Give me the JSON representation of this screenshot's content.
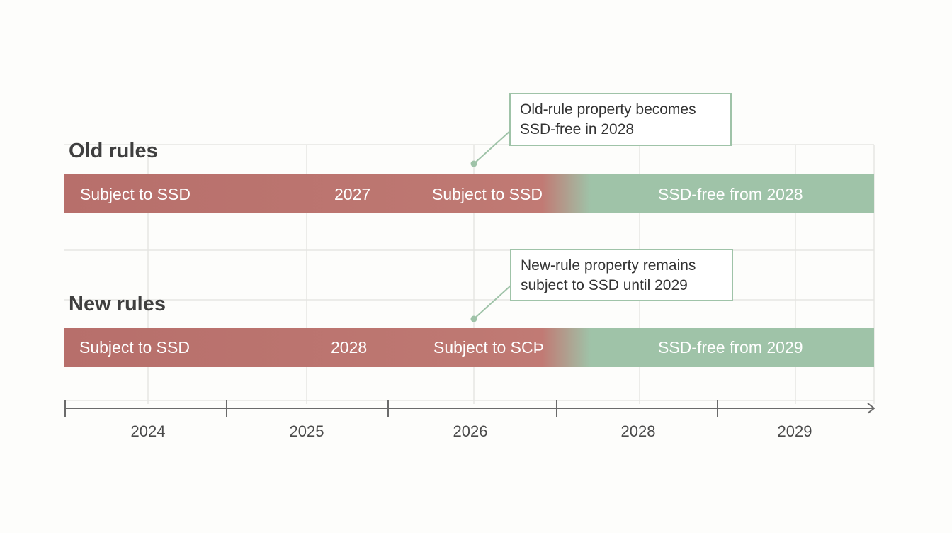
{
  "colors": {
    "background": "#fdfdfb",
    "grid": "#e6e6e3",
    "subject_red": "#b76f6b",
    "free_green": "#9fc3a8",
    "bar_text": "#ffffff",
    "heading_text": "#3f3f3f",
    "axis": "#6b6b6b",
    "callout_border": "#9fc3a8",
    "callout_text": "#333333"
  },
  "rows": [
    {
      "heading": "Old rules",
      "labels": {
        "left": "Subject to SSD",
        "year": "2027",
        "middle": "Subject to SSD",
        "right": "SSD-free from 2028"
      },
      "callout": {
        "line1": "Old-rule property becomes",
        "line2": "SSD-free in 2028"
      }
    },
    {
      "heading": "New rules",
      "labels": {
        "left": "Subject to SSD",
        "year": "2028",
        "middle": "Subject to SCÞ",
        "right": "SSD-free from 2029"
      },
      "callout": {
        "line1": "New-rule property remains",
        "line2": "subject to SSD until 2029"
      }
    }
  ],
  "axis": {
    "ticks": [
      "2024",
      "2025",
      "2026",
      "2028",
      "2029"
    ]
  }
}
